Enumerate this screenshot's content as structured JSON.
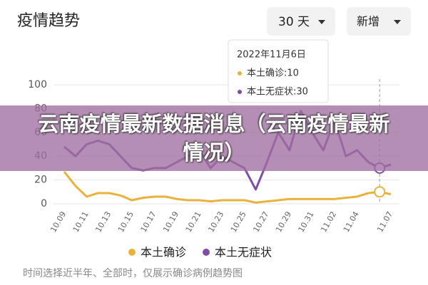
{
  "header": {
    "title": "疫情趋势",
    "range": "30 天",
    "metric": "新增"
  },
  "chart_data": {
    "type": "line",
    "categories": [
      "10.09",
      null,
      "10.11",
      null,
      "10.13",
      null,
      "10.15",
      null,
      "10.17",
      null,
      "10.19",
      null,
      "10.21",
      null,
      "10.23",
      null,
      "10.25",
      null,
      "10.27",
      null,
      "10.29",
      null,
      "10.31",
      null,
      "11.02",
      null,
      "11.04",
      null,
      null,
      "11.07"
    ],
    "series": [
      {
        "name": "本土确诊",
        "color": "#e9b23c",
        "values": [
          27,
          15,
          6,
          9,
          9,
          7,
          3,
          5,
          6,
          6,
          4,
          3,
          3,
          2,
          3,
          3,
          3,
          1,
          2,
          3,
          4,
          4,
          4,
          4,
          4,
          5,
          6,
          9,
          10,
          8
        ]
      },
      {
        "name": "本土无症状",
        "color": "#7d4ea5",
        "values": [
          48,
          40,
          50,
          53,
          50,
          40,
          30,
          28,
          30,
          30,
          35,
          40,
          45,
          30,
          40,
          35,
          30,
          12,
          35,
          60,
          45,
          78,
          60,
          45,
          70,
          40,
          45,
          35,
          30,
          33
        ]
      }
    ],
    "ylim": [
      0,
      100
    ],
    "yticks": [
      0,
      20,
      40,
      60,
      80,
      100
    ],
    "grid": true
  },
  "tooltip": {
    "date": "2022年11月6日",
    "lines": [
      "本土确诊:10",
      "本土无症状:30"
    ]
  },
  "banner": "云南疫情最新数据消息（云南疫情最新情况）",
  "footnote": "时间选择近半年、全部时，仅展示确诊病例趋势图"
}
